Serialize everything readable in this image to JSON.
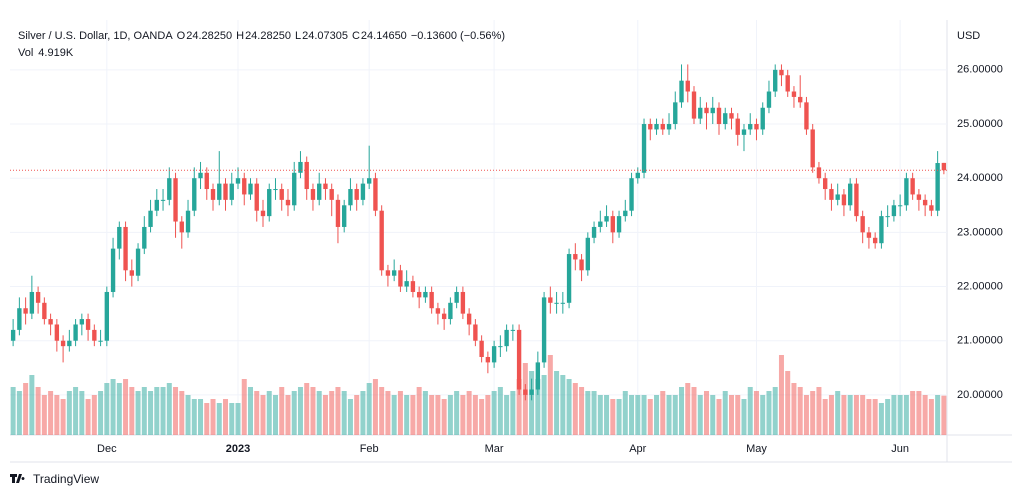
{
  "chart_data": {
    "type": "candlestick",
    "header": {
      "symbol": "Silver / U.S. Dollar, 1D, OANDA",
      "o_key": "O",
      "o": "24.28250",
      "h_key": "H",
      "h": "24.28250",
      "l_key": "L",
      "l": "24.07305",
      "c_key": "C",
      "c": "24.14650",
      "change": "−0.13600 (−0.56%)",
      "vol_key": "Vol",
      "vol": "4.919K"
    },
    "axis_unit": "USD",
    "brand": "TradingView",
    "up_color": "#26a69a",
    "down_color": "#ef5350",
    "last_price_line": true,
    "grid": true,
    "ylim": [
      19.26,
      26.92
    ],
    "yticks": [
      {
        "value": 20,
        "label": "20.00000"
      },
      {
        "value": 21,
        "label": "21.00000"
      },
      {
        "value": 22,
        "label": "22.00000"
      },
      {
        "value": 23,
        "label": "23.00000"
      },
      {
        "value": 24,
        "label": "24.00000"
      },
      {
        "value": 25,
        "label": "25.00000"
      },
      {
        "value": 26,
        "label": "26.00000"
      }
    ],
    "xticks": [
      {
        "value": 15,
        "label": "Dec"
      },
      {
        "value": 36,
        "label": "2023"
      },
      {
        "value": 57,
        "label": "Feb"
      },
      {
        "value": 77,
        "label": "Mar"
      },
      {
        "value": 100,
        "label": "Apr"
      },
      {
        "value": 119,
        "label": "May"
      },
      {
        "value": 142,
        "label": "Jun"
      }
    ],
    "open": [
      21.0,
      21.2,
      21.6,
      21.5,
      21.9,
      21.7,
      21.4,
      21.3,
      21.0,
      20.9,
      21.0,
      21.3,
      21.4,
      21.2,
      21.0,
      21.0,
      21.9,
      22.7,
      23.1,
      22.3,
      22.2,
      22.7,
      23.1,
      23.4,
      23.6,
      23.6,
      24.0,
      23.2,
      23.0,
      23.4,
      24.0,
      24.1,
      23.8,
      23.6,
      23.9,
      23.6,
      23.9,
      24.0,
      23.7,
      23.9,
      23.4,
      23.3,
      23.8,
      23.8,
      23.6,
      23.5,
      24.1,
      24.3,
      23.8,
      23.6,
      23.9,
      23.8,
      23.6,
      23.1,
      23.5,
      23.8,
      23.6,
      23.9,
      24.0,
      23.4,
      22.3,
      22.2,
      22.3,
      22.0,
      22.1,
      21.9,
      21.8,
      21.9,
      21.6,
      21.5,
      21.4,
      21.7,
      21.9,
      21.5,
      21.3,
      21.0,
      20.7,
      20.6,
      20.9,
      20.9,
      21.2,
      21.2,
      20.1,
      20.0,
      20.1,
      20.6,
      21.8,
      21.7,
      21.7,
      21.7,
      22.6,
      22.5,
      22.3,
      22.9,
      23.1,
      23.2,
      23.3,
      23.0,
      23.3,
      23.4,
      24.0,
      24.1,
      25.0,
      24.9,
      25.0,
      24.9,
      25.0,
      25.4,
      25.8,
      25.6,
      25.1,
      25.3,
      25.2,
      25.3,
      25.0,
      25.2,
      25.1,
      24.8,
      24.9,
      25.0,
      24.9,
      25.3,
      25.6,
      26.0,
      25.9,
      25.6,
      25.5,
      25.4,
      24.9,
      24.2,
      24.0,
      23.8,
      23.6,
      23.7,
      23.5,
      23.9,
      23.3,
      23.0,
      22.9,
      22.8,
      23.3,
      23.3,
      23.5,
      23.5,
      24.0,
      23.7,
      23.6,
      23.5,
      23.4,
      24.2825
    ],
    "high": [
      21.4,
      21.8,
      21.8,
      22.2,
      22.0,
      21.8,
      21.5,
      21.4,
      21.1,
      21.2,
      21.4,
      21.5,
      21.5,
      21.3,
      21.2,
      22.0,
      22.9,
      23.2,
      23.2,
      22.5,
      22.8,
      23.3,
      23.6,
      23.8,
      23.8,
      24.2,
      24.1,
      23.3,
      23.6,
      24.2,
      24.3,
      24.2,
      23.9,
      24.5,
      24.0,
      24.1,
      24.2,
      24.1,
      24.0,
      24.0,
      23.6,
      23.9,
      24.0,
      23.9,
      23.8,
      24.3,
      24.5,
      24.4,
      23.9,
      24.1,
      24.0,
      23.9,
      23.7,
      23.6,
      24.0,
      23.9,
      24.0,
      24.6,
      24.1,
      23.5,
      22.4,
      22.5,
      22.4,
      22.3,
      22.2,
      22.0,
      22.0,
      22.0,
      21.7,
      21.6,
      21.8,
      22.0,
      22.0,
      21.6,
      21.4,
      21.1,
      20.8,
      21.0,
      21.1,
      21.3,
      21.3,
      21.3,
      20.2,
      20.3,
      20.8,
      21.9,
      22.0,
      21.9,
      21.9,
      22.7,
      22.8,
      22.6,
      23.0,
      23.2,
      23.4,
      23.5,
      23.4,
      23.4,
      23.6,
      24.1,
      24.2,
      25.1,
      25.1,
      25.1,
      25.1,
      25.2,
      25.6,
      26.1,
      26.1,
      25.7,
      25.5,
      25.4,
      25.5,
      25.4,
      25.3,
      25.3,
      25.2,
      25.0,
      25.2,
      25.1,
      25.4,
      25.8,
      26.1,
      26.1,
      26.0,
      25.7,
      25.9,
      25.5,
      25.0,
      24.3,
      24.1,
      23.9,
      23.9,
      23.8,
      24.0,
      24.0,
      23.4,
      23.1,
      23.0,
      23.4,
      23.5,
      23.6,
      23.7,
      24.1,
      24.1,
      23.8,
      23.7,
      23.6,
      24.5,
      24.2825
    ],
    "low": [
      20.9,
      21.1,
      21.3,
      21.4,
      21.5,
      21.3,
      21.1,
      20.8,
      20.6,
      20.8,
      20.9,
      21.1,
      21.0,
      20.9,
      20.9,
      20.9,
      21.8,
      22.5,
      22.1,
      22.0,
      22.1,
      22.6,
      23.0,
      23.3,
      23.4,
      23.5,
      22.9,
      22.7,
      22.9,
      23.3,
      23.8,
      23.6,
      23.4,
      23.5,
      23.4,
      23.5,
      23.8,
      23.5,
      23.6,
      23.2,
      23.1,
      23.2,
      23.6,
      23.4,
      23.3,
      23.4,
      24.0,
      23.6,
      23.4,
      23.5,
      23.6,
      23.3,
      22.8,
      23.0,
      23.4,
      23.4,
      23.5,
      23.8,
      23.3,
      22.2,
      22.0,
      22.1,
      21.9,
      21.9,
      21.8,
      21.6,
      21.7,
      21.5,
      21.3,
      21.2,
      21.3,
      21.6,
      21.4,
      21.1,
      20.9,
      20.6,
      20.4,
      20.5,
      20.7,
      20.8,
      21.0,
      20.0,
      19.9,
      19.9,
      20.0,
      20.5,
      21.5,
      21.5,
      21.5,
      21.6,
      22.3,
      22.1,
      22.2,
      22.8,
      23.0,
      23.1,
      22.8,
      22.9,
      23.2,
      23.3,
      23.9,
      24.0,
      24.7,
      24.8,
      24.8,
      24.8,
      24.9,
      25.3,
      25.4,
      25.0,
      25.0,
      24.9,
      25.0,
      24.8,
      24.9,
      24.9,
      24.6,
      24.5,
      24.8,
      24.7,
      24.8,
      25.2,
      25.5,
      25.7,
      25.5,
      25.3,
      25.3,
      24.8,
      24.1,
      23.9,
      23.6,
      23.4,
      23.5,
      23.3,
      23.4,
      23.2,
      22.8,
      22.7,
      22.7,
      22.7,
      23.1,
      23.2,
      23.3,
      23.4,
      23.6,
      23.4,
      23.3,
      23.3,
      23.3,
      24.07305
    ],
    "close": [
      21.2,
      21.6,
      21.5,
      21.9,
      21.7,
      21.4,
      21.3,
      21.0,
      20.9,
      21.0,
      21.3,
      21.4,
      21.2,
      21.0,
      21.0,
      21.9,
      22.7,
      23.1,
      22.3,
      22.2,
      22.7,
      23.1,
      23.4,
      23.6,
      23.6,
      24.0,
      23.2,
      23.0,
      23.4,
      24.0,
      24.1,
      23.8,
      23.6,
      23.9,
      23.6,
      23.9,
      24.0,
      23.7,
      23.9,
      23.4,
      23.3,
      23.8,
      23.8,
      23.6,
      23.5,
      24.1,
      24.3,
      23.8,
      23.6,
      23.9,
      23.8,
      23.6,
      23.1,
      23.5,
      23.8,
      23.6,
      23.9,
      24.0,
      23.4,
      22.3,
      22.2,
      22.3,
      22.0,
      22.1,
      21.9,
      21.8,
      21.9,
      21.6,
      21.5,
      21.4,
      21.7,
      21.9,
      21.5,
      21.3,
      21.0,
      20.7,
      20.6,
      20.9,
      20.9,
      21.2,
      21.2,
      20.1,
      20.0,
      20.1,
      20.6,
      21.8,
      21.7,
      21.7,
      21.7,
      22.6,
      22.5,
      22.3,
      22.9,
      23.1,
      23.2,
      23.3,
      23.0,
      23.3,
      23.4,
      24.0,
      24.1,
      25.0,
      24.9,
      25.0,
      24.9,
      25.0,
      25.4,
      25.8,
      25.6,
      25.1,
      25.3,
      25.2,
      25.3,
      25.0,
      25.2,
      25.1,
      24.8,
      24.9,
      25.0,
      24.9,
      25.3,
      25.6,
      26.0,
      25.9,
      25.6,
      25.5,
      25.4,
      24.9,
      24.2,
      24.0,
      23.8,
      23.6,
      23.7,
      23.5,
      23.9,
      23.3,
      23.0,
      22.9,
      22.8,
      23.3,
      23.3,
      23.5,
      23.5,
      24.0,
      23.7,
      23.6,
      23.5,
      23.4,
      24.28,
      24.1465
    ],
    "volume": [
      6,
      5.5,
      6.5,
      7.5,
      6,
      5,
      5.5,
      5,
      4.5,
      5.5,
      6,
      5.5,
      4.5,
      5,
      5.5,
      6.5,
      7,
      6.5,
      7,
      6,
      5.5,
      6,
      5.5,
      6,
      6,
      6.5,
      6,
      5.5,
      5,
      4.5,
      4.5,
      4,
      4.5,
      4,
      4.5,
      4,
      4,
      7,
      6,
      5.5,
      5,
      5.5,
      5,
      6,
      5,
      5.5,
      6,
      6.5,
      6,
      5.5,
      5,
      5.5,
      6,
      5.5,
      4.5,
      5,
      5.5,
      6.5,
      7,
      6,
      5.5,
      5,
      5.5,
      5,
      5,
      6,
      5.5,
      5,
      5,
      4.5,
      5,
      5.5,
      5,
      5.5,
      5,
      4.5,
      5,
      5.5,
      6,
      5,
      5.5,
      7,
      9,
      8,
      7,
      7.5,
      10,
      8,
      7.5,
      7,
      6.5,
      6,
      5.5,
      5.5,
      5,
      5,
      4.5,
      4.5,
      5.5,
      5,
      5,
      5,
      4.5,
      5,
      5.5,
      5,
      5,
      6,
      6.5,
      6,
      5,
      5.5,
      5,
      4.5,
      5.5,
      5,
      5,
      4.5,
      6,
      5.5,
      5,
      5.5,
      6,
      10,
      8,
      6.5,
      6,
      5,
      5.5,
      6,
      4.5,
      5,
      5.5,
      5,
      5,
      5,
      5,
      4.5,
      4.5,
      4,
      4.5,
      5,
      5,
      5,
      5.5,
      5.5,
      5,
      4.5,
      5,
      4.919
    ]
  }
}
